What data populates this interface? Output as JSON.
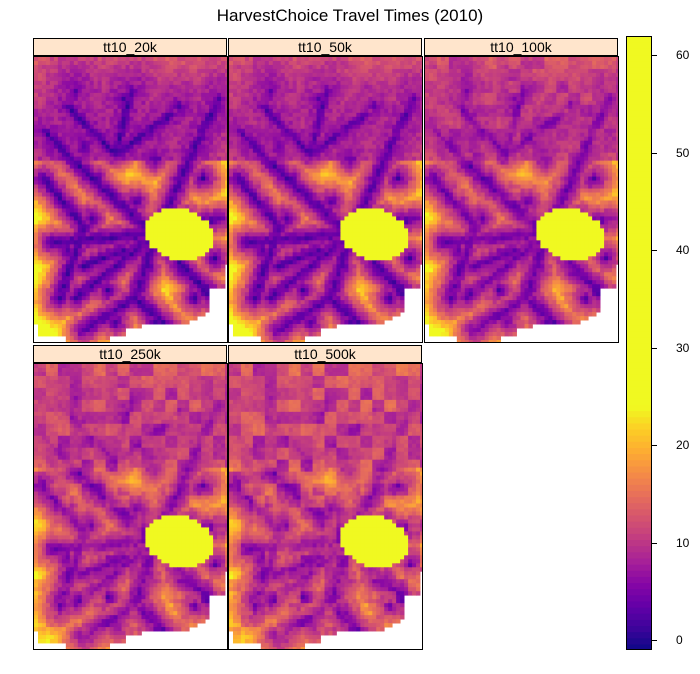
{
  "chart_data": {
    "type": "heatmap",
    "title": "HarvestChoice Travel Times (2010)",
    "panels": [
      {
        "name": "tt10_20k",
        "detail_level": 0.0
      },
      {
        "name": "tt10_50k",
        "detail_level": 0.1
      },
      {
        "name": "tt10_100k",
        "detail_level": 0.35
      },
      {
        "name": "tt10_250k",
        "detail_level": 0.6
      },
      {
        "name": "tt10_500k",
        "detail_level": 0.8
      }
    ],
    "colorbar": {
      "range": [
        -1,
        62
      ],
      "ticks": [
        0,
        10,
        20,
        30,
        40,
        50,
        60
      ],
      "palette": "plasma",
      "colors": [
        "#0d0887",
        "#3d049b",
        "#6300a7",
        "#8606a6",
        "#a62098",
        "#c03a83",
        "#d5546e",
        "#e76f5a",
        "#f58c46",
        "#fdad32",
        "#fcce25",
        "#f0f921"
      ],
      "saturation_value": 24
    }
  }
}
